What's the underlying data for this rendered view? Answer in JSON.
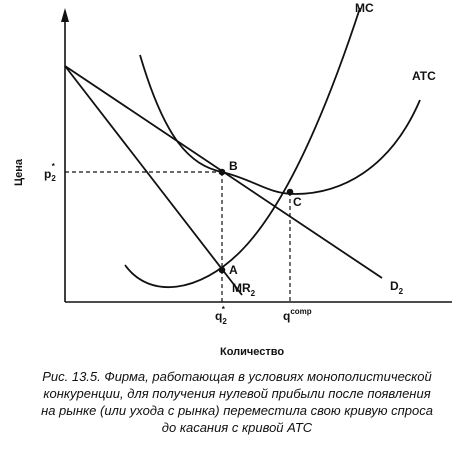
{
  "axes": {
    "y_title": "Цена",
    "x_title": "Количество"
  },
  "curves": {
    "mc": "MC",
    "atc": "ATC",
    "mr": {
      "base": "MR",
      "sub": "2"
    },
    "demand": {
      "base": "D",
      "sub": "2"
    }
  },
  "points": {
    "a": "A",
    "b": "B",
    "c": "C"
  },
  "ticks": {
    "p": {
      "base": "p",
      "sub": "2",
      "sup": "*"
    },
    "q": {
      "base": "q",
      "sub": "2",
      "sup": "*"
    },
    "qcomp": {
      "base": "q",
      "sup": "comp"
    }
  },
  "caption": {
    "line1": "Рис. 13.5. Фирма, работающая в условиях монополистической",
    "line2": "конкуренции, для получения нулевой прибыли после появления",
    "line3": "на рынке (или ухода с рынка) переместила свою кривую спроса",
    "line4": "до касания с кривой ATC"
  },
  "colors": {
    "ink": "#111111",
    "background": "#ffffff"
  }
}
